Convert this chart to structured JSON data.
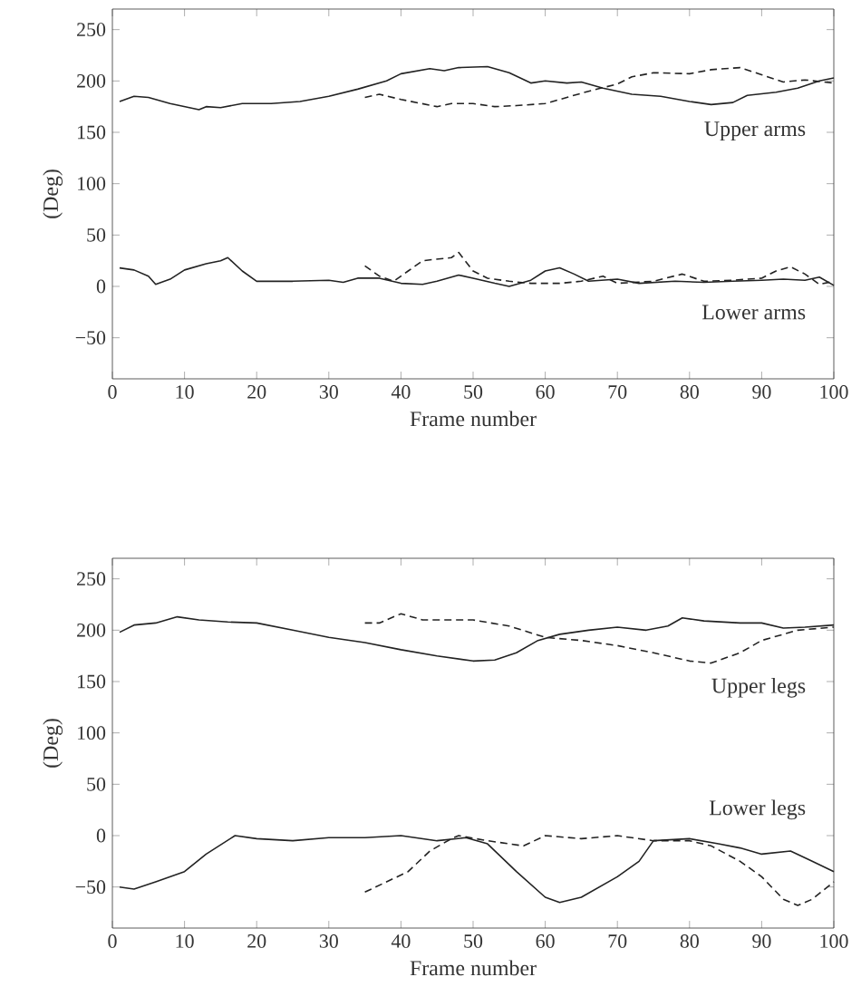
{
  "chart_data": [
    {
      "type": "line",
      "xlabel": "Frame number",
      "ylabel": "(Deg)",
      "xlim": [
        0,
        100
      ],
      "ylim": [
        -90,
        270
      ],
      "xticks": [
        0,
        10,
        20,
        30,
        40,
        50,
        60,
        70,
        80,
        90,
        100
      ],
      "yticks": [
        {
          "value": -50,
          "label": "−50"
        },
        0,
        50,
        100,
        150,
        200,
        250
      ],
      "grid": false,
      "annotations": [
        "Upper arms",
        "Lower arms"
      ],
      "series": [
        {
          "color": "#222222",
          "line_style": "solid",
          "x": [
            1,
            3,
            5,
            8,
            12,
            13,
            15,
            18,
            22,
            26,
            30,
            34,
            38,
            40,
            44,
            46,
            48,
            52,
            55,
            58,
            60,
            63,
            65,
            68,
            72,
            76,
            80,
            83,
            86,
            88,
            92,
            95,
            98,
            100
          ],
          "values": [
            180,
            185,
            184,
            178,
            172,
            175,
            174,
            178,
            178,
            180,
            185,
            192,
            200,
            207,
            212,
            210,
            213,
            214,
            208,
            198,
            200,
            198,
            199,
            193,
            187,
            185,
            180,
            177,
            179,
            186,
            189,
            193,
            200,
            203
          ]
        },
        {
          "color": "#222222",
          "line_style": "dashed",
          "x": [
            35,
            37,
            40,
            45,
            47,
            50,
            53,
            56,
            60,
            63,
            66,
            70,
            72,
            75,
            80,
            83,
            87,
            90,
            93,
            96,
            100
          ],
          "values": [
            184,
            187,
            182,
            175,
            178,
            178,
            175,
            176,
            178,
            184,
            190,
            197,
            204,
            208,
            207,
            211,
            213,
            206,
            199,
            201,
            198
          ]
        },
        {
          "color": "#222222",
          "line_style": "solid",
          "x": [
            1,
            3,
            5,
            6,
            8,
            10,
            13,
            15,
            16,
            18,
            20,
            25,
            30,
            32,
            34,
            37,
            40,
            43,
            45,
            48,
            50,
            53,
            55,
            58,
            60,
            62,
            64,
            66,
            70,
            73,
            78,
            82,
            86,
            90,
            93,
            96,
            98,
            100
          ],
          "values": [
            18,
            16,
            10,
            2,
            7,
            16,
            22,
            25,
            28,
            15,
            5,
            5,
            6,
            4,
            8,
            8,
            3,
            2,
            5,
            11,
            8,
            3,
            0,
            6,
            15,
            18,
            12,
            5,
            7,
            3,
            5,
            4,
            5,
            6,
            7,
            6,
            9,
            1
          ]
        },
        {
          "color": "#222222",
          "line_style": "dashed",
          "x": [
            35,
            37,
            39,
            41,
            43,
            47,
            48,
            50,
            52,
            55,
            58,
            62,
            65,
            68,
            70,
            75,
            79,
            82,
            86,
            90,
            92,
            94,
            96,
            98,
            100
          ],
          "values": [
            20,
            10,
            5,
            15,
            25,
            28,
            33,
            15,
            8,
            5,
            3,
            3,
            5,
            10,
            3,
            5,
            12,
            5,
            6,
            8,
            15,
            19,
            12,
            2,
            5
          ]
        }
      ]
    },
    {
      "type": "line",
      "xlabel": "Frame number",
      "ylabel": "(Deg)",
      "xlim": [
        0,
        100
      ],
      "ylim": [
        -90,
        270
      ],
      "xticks": [
        0,
        10,
        20,
        30,
        40,
        50,
        60,
        70,
        80,
        90,
        100
      ],
      "yticks": [
        {
          "value": -50,
          "label": "−50"
        },
        0,
        50,
        100,
        150,
        200,
        250
      ],
      "grid": false,
      "annotations": [
        "Upper legs",
        "Lower legs"
      ],
      "series": [
        {
          "color": "#222222",
          "line_style": "solid",
          "x": [
            1,
            3,
            6,
            9,
            12,
            16,
            20,
            25,
            30,
            35,
            40,
            45,
            50,
            53,
            56,
            59,
            62,
            66,
            70,
            74,
            77,
            79,
            82,
            87,
            90,
            93,
            96,
            100
          ],
          "values": [
            198,
            205,
            207,
            213,
            210,
            208,
            207,
            200,
            193,
            188,
            181,
            175,
            170,
            171,
            178,
            190,
            196,
            200,
            203,
            200,
            204,
            212,
            209,
            207,
            207,
            202,
            203,
            205
          ]
        },
        {
          "color": "#222222",
          "line_style": "dashed",
          "x": [
            35,
            37,
            40,
            43,
            50,
            55,
            60,
            65,
            70,
            75,
            80,
            83,
            87,
            90,
            95,
            100
          ],
          "values": [
            207,
            207,
            216,
            210,
            210,
            204,
            193,
            190,
            185,
            178,
            170,
            168,
            178,
            190,
            200,
            203
          ]
        },
        {
          "color": "#222222",
          "line_style": "solid",
          "x": [
            1,
            3,
            6,
            10,
            13,
            17,
            20,
            25,
            30,
            35,
            40,
            45,
            49,
            52,
            56,
            60,
            62,
            65,
            70,
            73,
            75,
            80,
            84,
            87,
            90,
            94,
            97,
            100
          ],
          "values": [
            -50,
            -52,
            -45,
            -35,
            -18,
            0,
            -3,
            -5,
            -2,
            -2,
            0,
            -5,
            -2,
            -8,
            -35,
            -60,
            -65,
            -60,
            -40,
            -25,
            -5,
            -3,
            -8,
            -12,
            -18,
            -15,
            -25,
            -35
          ]
        },
        {
          "color": "#222222",
          "line_style": "dashed",
          "x": [
            35,
            38,
            41,
            44,
            47,
            48,
            52,
            57,
            60,
            65,
            70,
            75,
            80,
            83,
            87,
            90,
            93,
            95,
            97,
            100
          ],
          "values": [
            -55,
            -45,
            -35,
            -15,
            -3,
            0,
            -5,
            -10,
            0,
            -3,
            0,
            -5,
            -5,
            -10,
            -25,
            -40,
            -62,
            -68,
            -62,
            -45
          ]
        }
      ]
    }
  ]
}
